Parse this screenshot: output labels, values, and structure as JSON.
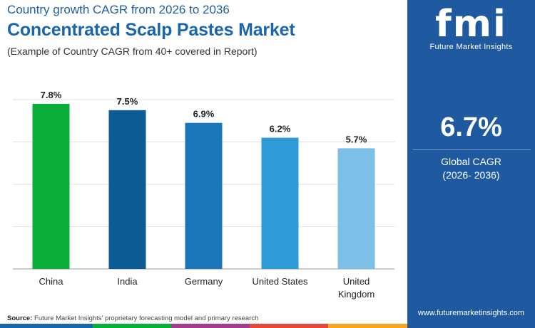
{
  "header": {
    "subtitle": "Country growth CAGR from 2026 to 2036",
    "title": "Concentrated Scalp Pastes Market",
    "note": "(Example of Country CAGR from 40+ covered in Report)"
  },
  "chart_data": {
    "type": "bar",
    "categories": [
      "China",
      "India",
      "Germany",
      "United States",
      "United Kingdom"
    ],
    "values": [
      7.8,
      7.5,
      6.9,
      6.2,
      5.7
    ],
    "value_labels": [
      "7.8%",
      "7.5%",
      "6.9%",
      "6.2%",
      "5.7%"
    ],
    "ylim": [
      0,
      8.2
    ],
    "grid": true,
    "colors": [
      "#0aae39",
      "#0d5c95",
      "#1a75b9",
      "#2f9ad8",
      "#7dbfe6"
    ]
  },
  "side_panel": {
    "logo_text": "fmi",
    "logo_name": "Future Market Insights",
    "cagr_value": "6.7%",
    "cagr_label": "Global CAGR",
    "cagr_period": "(2026- 2036)",
    "website": "www.futuremarketinsights.com",
    "background_color": "#1f5aa0"
  },
  "footer": {
    "source_label": "Source:",
    "source_text": "Future Market Insights' proprietary forecasting model and primary research",
    "strip_colors": [
      "#1a66ad",
      "#0aae39",
      "#a33c8f",
      "#e24a3b",
      "#f5a623"
    ]
  }
}
